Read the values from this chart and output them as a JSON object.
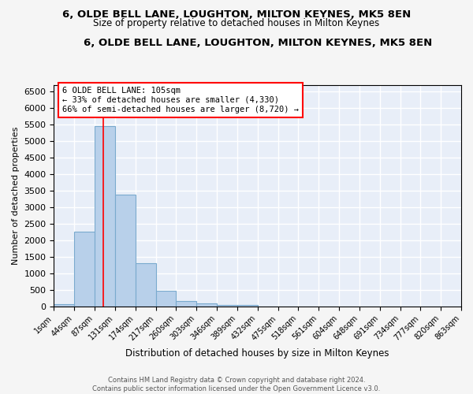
{
  "title": "6, OLDE BELL LANE, LOUGHTON, MILTON KEYNES, MK5 8EN",
  "subtitle": "Size of property relative to detached houses in Milton Keynes",
  "xlabel": "Distribution of detached houses by size in Milton Keynes",
  "ylabel": "Number of detached properties",
  "footer_line1": "Contains HM Land Registry data © Crown copyright and database right 2024.",
  "footer_line2": "Contains public sector information licensed under the Open Government Licence v3.0.",
  "bar_color": "#b8d0ea",
  "bar_edge_color": "#7aaace",
  "background_color": "#e8eef8",
  "fig_background": "#f5f5f5",
  "grid_color": "#ffffff",
  "tick_labels": [
    "1sqm",
    "44sqm",
    "87sqm",
    "131sqm",
    "174sqm",
    "217sqm",
    "260sqm",
    "303sqm",
    "346sqm",
    "389sqm",
    "432sqm",
    "475sqm",
    "518sqm",
    "561sqm",
    "604sqm",
    "648sqm",
    "691sqm",
    "734sqm",
    "777sqm",
    "820sqm",
    "863sqm"
  ],
  "bar_values": [
    70,
    2270,
    5450,
    3380,
    1310,
    480,
    170,
    90,
    55,
    55,
    0,
    0,
    0,
    0,
    0,
    0,
    0,
    0,
    0,
    0
  ],
  "ylim": [
    0,
    6700
  ],
  "yticks": [
    0,
    500,
    1000,
    1500,
    2000,
    2500,
    3000,
    3500,
    4000,
    4500,
    5000,
    5500,
    6000,
    6500
  ],
  "property_label": "6 OLDE BELL LANE: 105sqm",
  "arrow_left_text": "← 33% of detached houses are smaller (4,330)",
  "arrow_right_text": "66% of semi-detached houses are larger (8,720) →",
  "vline_x": 2.41
}
